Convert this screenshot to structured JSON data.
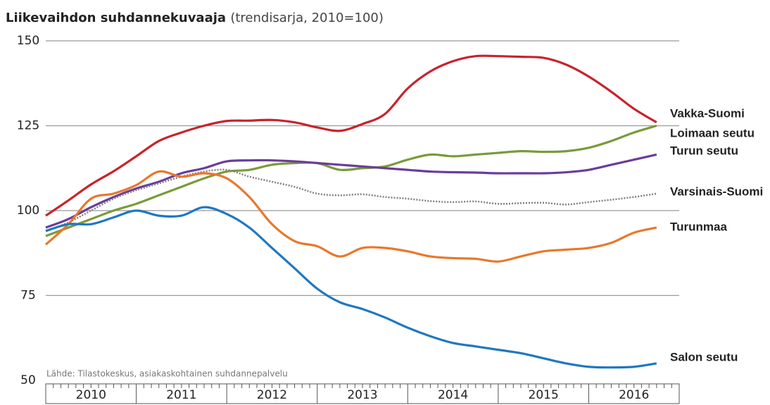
{
  "chart_data": {
    "type": "line",
    "title": "Liikevaihdon suhdannekuvaaja",
    "subtitle": "(trendisarja, 2010=100)",
    "source": "Lähde: Tilastokeskus, asiakaskohtainen suhdannepalvelu",
    "x": [
      2010,
      2010.25,
      2010.5,
      2010.75,
      2011,
      2011.25,
      2011.5,
      2011.75,
      2012,
      2012.25,
      2012.5,
      2012.75,
      2013,
      2013.25,
      2013.5,
      2013.75,
      2014,
      2014.25,
      2014.5,
      2014.75,
      2015,
      2015.25,
      2015.5,
      2015.75,
      2016,
      2016.25,
      2016.5,
      2016.75
    ],
    "xlim": [
      2010,
      2017
    ],
    "xticks": [
      2010,
      2011,
      2012,
      2013,
      2014,
      2015,
      2016
    ],
    "ylim": [
      50,
      150
    ],
    "yticks": [
      50,
      75,
      100,
      125,
      150
    ],
    "grid": true,
    "series": [
      {
        "name": "Vakka-Suomi",
        "color": "#c8232c",
        "values": [
          98.5,
          103,
          107.7,
          111.6,
          116,
          120.5,
          123,
          125,
          126.4,
          126.5,
          126.7,
          126,
          124.5,
          123.5,
          125.5,
          128.5,
          136,
          141,
          144,
          145.5,
          145.5,
          145.3,
          145,
          143,
          139.5,
          135,
          130,
          126
        ]
      },
      {
        "name": "Loimaan seutu",
        "color": "#7a9a3a",
        "values": [
          92.5,
          95,
          97.5,
          100,
          102,
          104.5,
          107,
          109.5,
          111.5,
          112,
          113.5,
          114,
          114,
          112,
          112.5,
          113,
          115,
          116.5,
          116,
          116.5,
          117,
          117.5,
          117.3,
          117.5,
          118.5,
          120.5,
          123,
          125
        ]
      },
      {
        "name": "Turun seutu",
        "color": "#6a3d9a",
        "values": [
          95,
          97.5,
          101,
          104,
          106.5,
          108.5,
          111,
          112.5,
          114.5,
          114.8,
          114.8,
          114.5,
          114,
          113.5,
          113,
          112.5,
          112,
          111.5,
          111.3,
          111.2,
          111,
          111,
          111,
          111.3,
          112,
          113.5,
          115,
          116.5
        ]
      },
      {
        "name": "Varsinais-Suomi",
        "color": "#808080",
        "dashed": true,
        "values": [
          94,
          96.5,
          100,
          103.5,
          106,
          108,
          110,
          111.5,
          112,
          110,
          108.5,
          107,
          105,
          104.5,
          104.8,
          104,
          103.5,
          102.8,
          102.5,
          102.7,
          102,
          102.2,
          102.3,
          101.8,
          102.5,
          103.2,
          104,
          105
        ]
      },
      {
        "name": "Turunmaa",
        "color": "#e8782a",
        "values": [
          90,
          96,
          103.5,
          105,
          107.5,
          111.5,
          110,
          111,
          109.5,
          104,
          96,
          91,
          89.5,
          86.5,
          89,
          89,
          88,
          86.5,
          86,
          85.8,
          85,
          86.5,
          88,
          88.5,
          89,
          90.5,
          93.5,
          95
        ]
      },
      {
        "name": "Salon seutu",
        "color": "#1f78c1",
        "values": [
          94,
          96,
          96,
          98,
          100,
          98.5,
          98.5,
          101,
          99,
          95,
          89,
          83,
          77,
          73,
          71,
          68.5,
          65.5,
          63,
          61,
          60,
          59,
          58,
          56.5,
          55,
          54,
          53.8,
          54,
          55
        ]
      }
    ]
  }
}
